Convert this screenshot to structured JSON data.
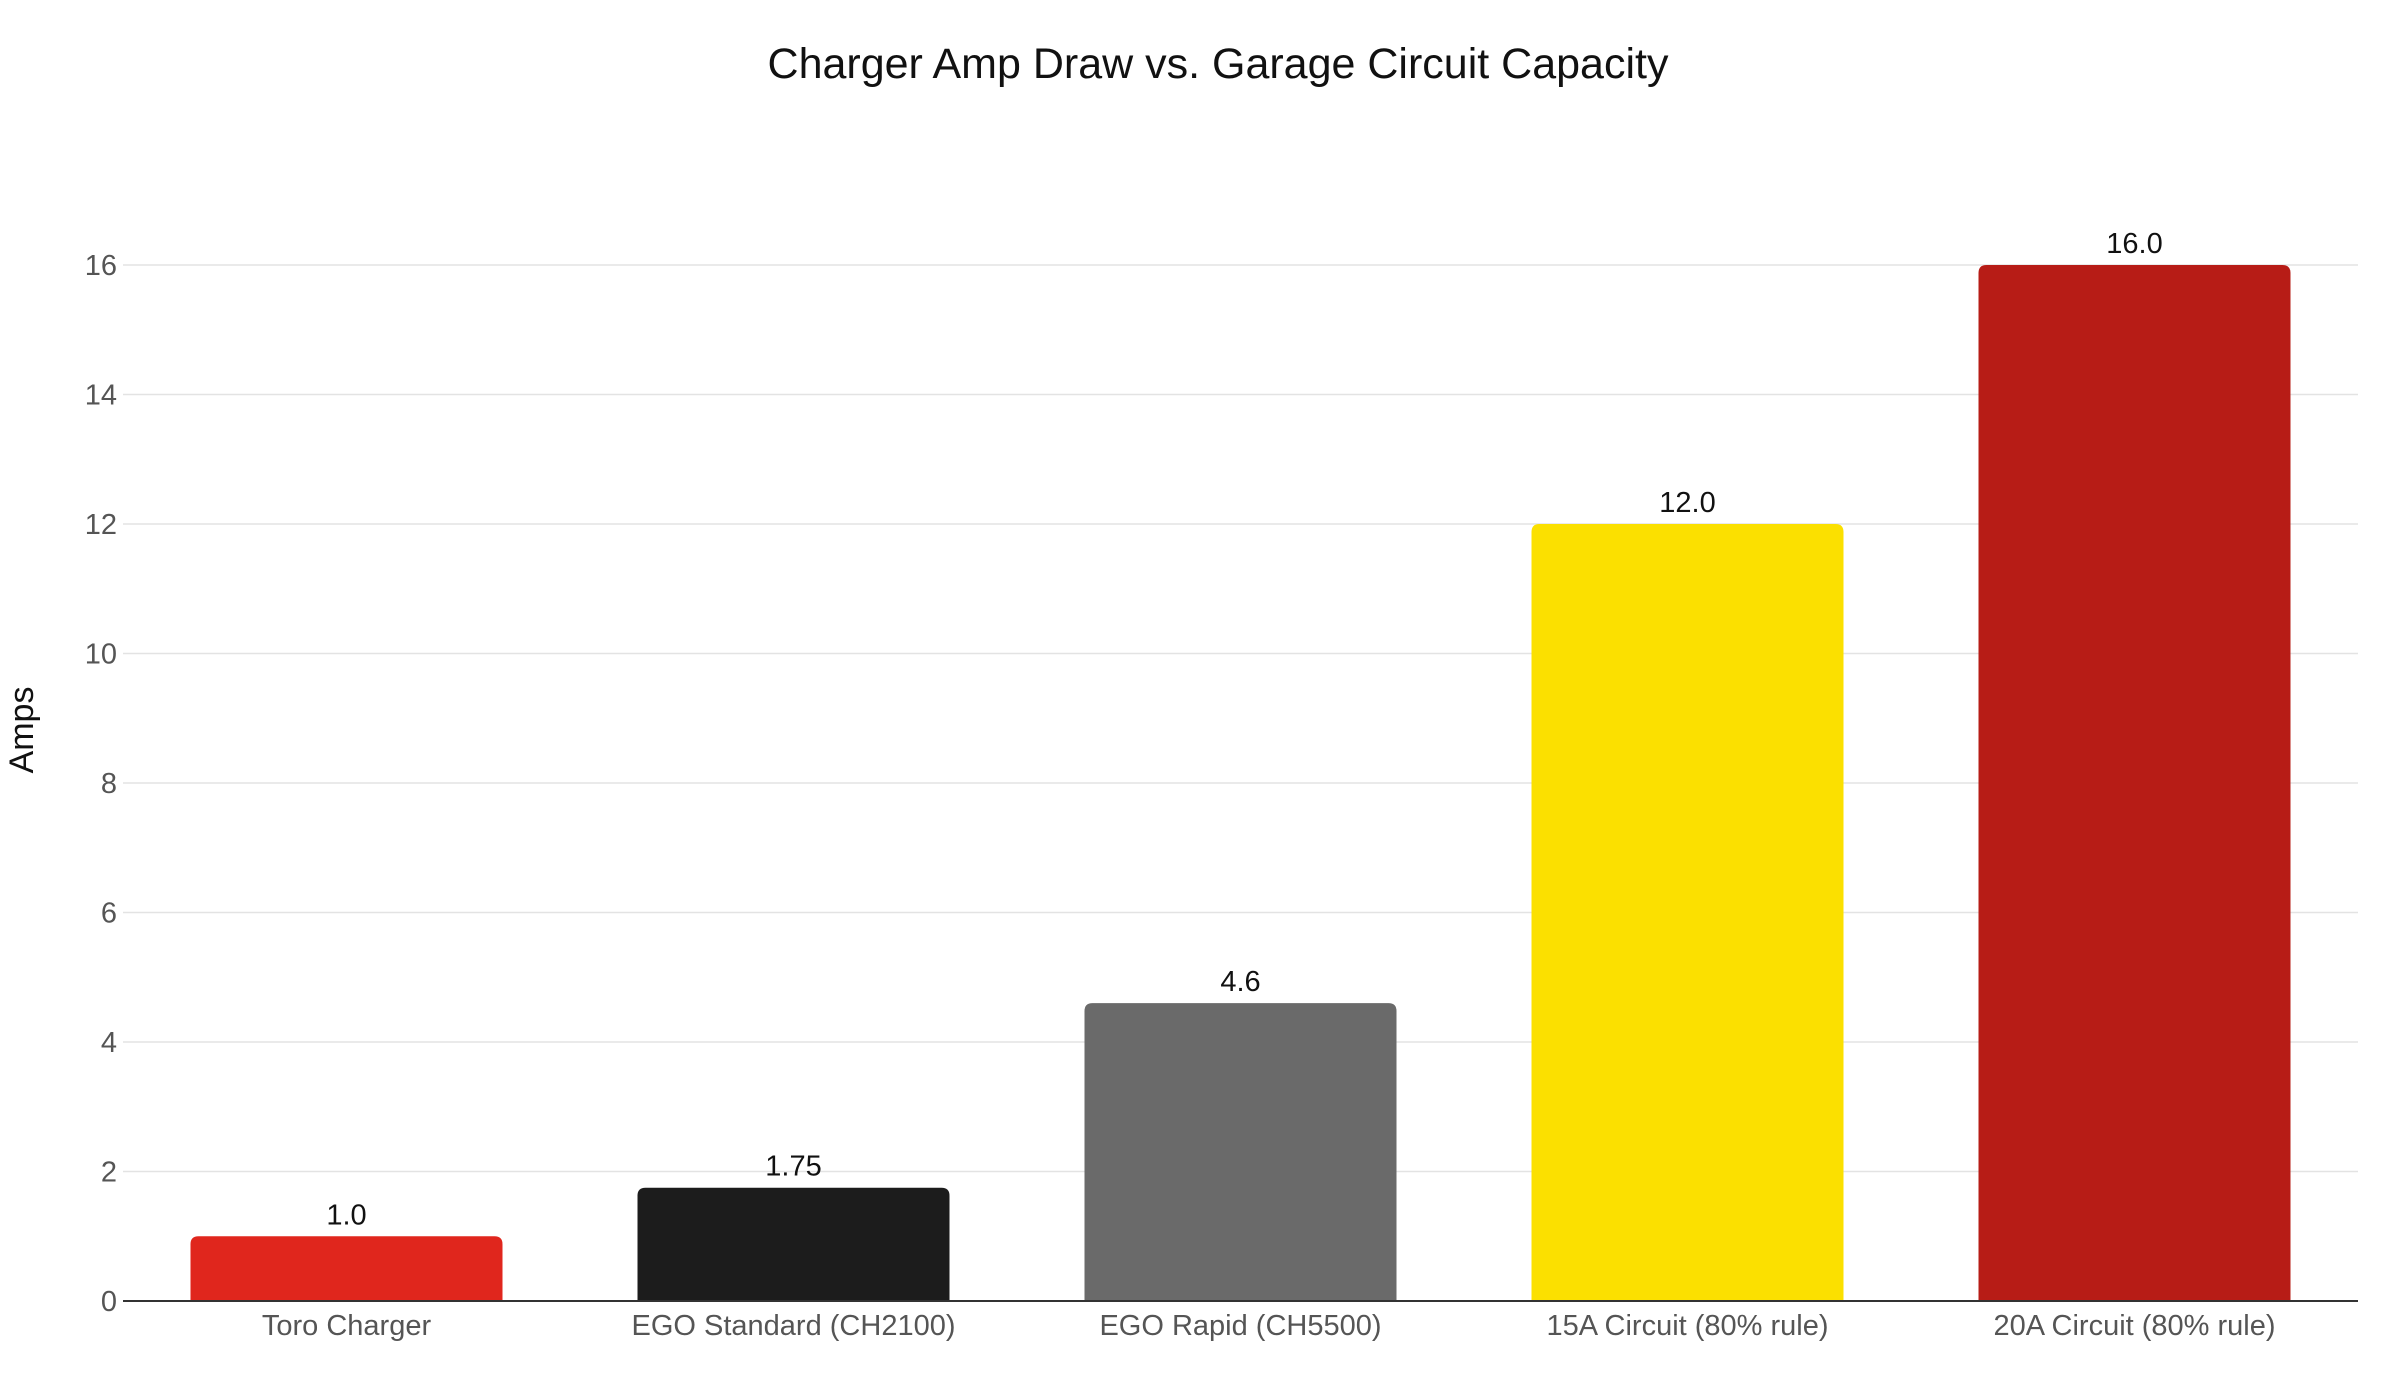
{
  "chart_data": {
    "type": "bar",
    "title": "Charger Amp Draw vs. Garage Circuit Capacity",
    "xlabel": "",
    "ylabel": "Amps",
    "ylim": [
      0,
      17.4
    ],
    "yticks": [
      0,
      2,
      4,
      6,
      8,
      10,
      12,
      14,
      16
    ],
    "grid": true,
    "legend": "none",
    "categories": [
      "Toro Charger",
      "EGO Standard (CH2100)",
      "EGO Rapid (CH5500)",
      "15A Circuit (80% rule)",
      "20A Circuit (80% rule)"
    ],
    "values": [
      1.0,
      1.75,
      4.6,
      12.0,
      16.0
    ],
    "data_labels": [
      "1.0",
      "1.75",
      "4.6",
      "12.0",
      "16.0"
    ],
    "colors": [
      "#e0261d",
      "#1c1c1c",
      "#6a6a6a",
      "#fbe000",
      "#b71c16"
    ]
  }
}
